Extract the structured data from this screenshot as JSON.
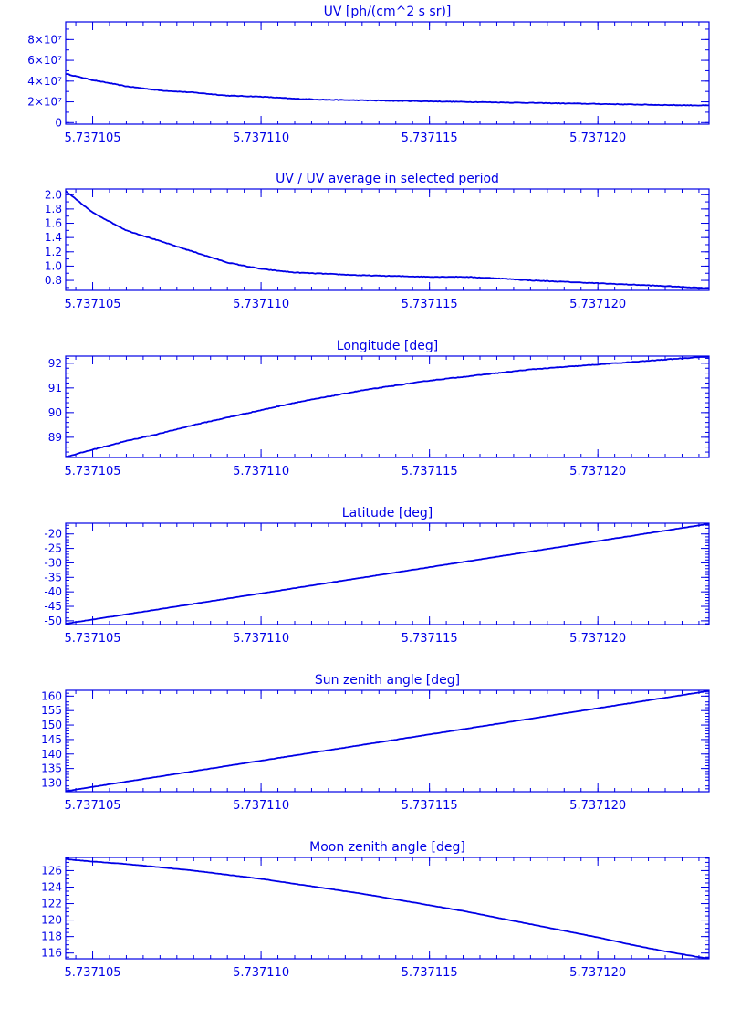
{
  "colors": {
    "line": "#0000e6",
    "background": "#ffffff"
  },
  "chart_data": [
    {
      "type": "line",
      "title": "UV [ph/(cm^2 s sr)]",
      "xlim": [
        5.7371042,
        5.7371233
      ],
      "ylim": [
        -1500000,
        97000000
      ],
      "yticks": [
        0,
        20000000,
        40000000,
        60000000,
        80000000
      ],
      "ytick_labels": [
        "0",
        "2×10⁷",
        "4×10⁷",
        "6×10⁷",
        "8×10⁷"
      ],
      "yminor_step": 10000000,
      "xticks": [
        5.737105,
        5.73711,
        5.737115,
        5.73712
      ],
      "xtick_labels": [
        "5.737105",
        "5.737110",
        "5.737115",
        "5.737120"
      ],
      "series": [
        {
          "x": [
            5.7371042,
            5.737105,
            5.737106,
            5.737107,
            5.737108,
            5.737109,
            5.73711,
            5.737111,
            5.737112,
            5.737113,
            5.737114,
            5.737115,
            5.737116,
            5.737117,
            5.737118,
            5.737119,
            5.73712,
            5.737121,
            5.737122,
            5.7371233
          ],
          "y": [
            47000000,
            41000000,
            35000000,
            31000000,
            29000000,
            26000000,
            25000000,
            23000000,
            22000000,
            21500000,
            21000000,
            20500000,
            20000000,
            19500000,
            19000000,
            18500000,
            18000000,
            17500000,
            17000000,
            16500000
          ]
        }
      ]
    },
    {
      "type": "line",
      "title": "UV / UV average in selected period",
      "xlim": [
        5.7371042,
        5.7371233
      ],
      "ylim": [
        0.66,
        2.08
      ],
      "yticks": [
        0.8,
        1.0,
        1.2,
        1.4,
        1.6,
        1.8,
        2.0
      ],
      "ytick_labels": [
        "0.8",
        "1.0",
        "1.2",
        "1.4",
        "1.6",
        "1.8",
        "2.0"
      ],
      "yminor_step": 0.1,
      "xticks": [
        5.737105,
        5.73711,
        5.737115,
        5.73712
      ],
      "xtick_labels": [
        "5.737105",
        "5.737110",
        "5.737115",
        "5.737120"
      ],
      "series": [
        {
          "x": [
            5.7371042,
            5.737105,
            5.737106,
            5.737107,
            5.737108,
            5.737109,
            5.73711,
            5.737111,
            5.737112,
            5.737113,
            5.737114,
            5.737115,
            5.737116,
            5.737117,
            5.737118,
            5.737119,
            5.73712,
            5.737121,
            5.737122,
            5.7371233
          ],
          "y": [
            2.05,
            1.75,
            1.5,
            1.35,
            1.2,
            1.05,
            0.96,
            0.91,
            0.89,
            0.87,
            0.86,
            0.85,
            0.85,
            0.83,
            0.8,
            0.78,
            0.76,
            0.74,
            0.72,
            0.69
          ]
        }
      ]
    },
    {
      "type": "line",
      "title": "Longitude [deg]",
      "xlim": [
        5.7371042,
        5.7371233
      ],
      "ylim": [
        88.18,
        92.29
      ],
      "yticks": [
        89,
        90,
        91,
        92
      ],
      "ytick_labels": [
        "89",
        "90",
        "91",
        "92"
      ],
      "yminor_step": 0.2,
      "xticks": [
        5.737105,
        5.73711,
        5.737115,
        5.73712
      ],
      "xtick_labels": [
        "5.737105",
        "5.737110",
        "5.737115",
        "5.737120"
      ],
      "series": [
        {
          "x": [
            5.7371042,
            5.737105,
            5.737106,
            5.737107,
            5.737108,
            5.737109,
            5.73711,
            5.737111,
            5.737112,
            5.737113,
            5.737114,
            5.737115,
            5.737116,
            5.737117,
            5.737118,
            5.737119,
            5.73712,
            5.737121,
            5.737122,
            5.7371233
          ],
          "y": [
            88.2,
            88.5,
            88.85,
            89.15,
            89.5,
            89.8,
            90.1,
            90.4,
            90.65,
            90.9,
            91.1,
            91.3,
            91.45,
            91.6,
            91.75,
            91.85,
            91.95,
            92.05,
            92.15,
            92.28
          ]
        }
      ]
    },
    {
      "type": "line",
      "title": "Latitude [deg]",
      "xlim": [
        5.7371042,
        5.7371233
      ],
      "ylim": [
        -51.3,
        -16.3
      ],
      "yticks": [
        -50,
        -45,
        -40,
        -35,
        -30,
        -25,
        -20
      ],
      "ytick_labels": [
        "-50",
        "-45",
        "-40",
        "-35",
        "-30",
        "-25",
        "-20"
      ],
      "yminor_step": 1,
      "xticks": [
        5.737105,
        5.73711,
        5.737115,
        5.73712
      ],
      "xtick_labels": [
        "5.737105",
        "5.737110",
        "5.737115",
        "5.737120"
      ],
      "series": [
        {
          "x": [
            5.7371042,
            5.7371233
          ],
          "y": [
            -51.0,
            -16.5
          ]
        }
      ]
    },
    {
      "type": "line",
      "title": "Sun zenith angle [deg]",
      "xlim": [
        5.7371042,
        5.7371233
      ],
      "ylim": [
        127.0,
        162.0
      ],
      "yticks": [
        130,
        135,
        140,
        145,
        150,
        155,
        160
      ],
      "ytick_labels": [
        "130",
        "135",
        "140",
        "145",
        "150",
        "155",
        "160"
      ],
      "yminor_step": 1,
      "xticks": [
        5.737105,
        5.73711,
        5.737115,
        5.73712
      ],
      "xtick_labels": [
        "5.737105",
        "5.737110",
        "5.737115",
        "5.737120"
      ],
      "series": [
        {
          "x": [
            5.7371042,
            5.7371233
          ],
          "y": [
            127.2,
            161.8
          ]
        }
      ]
    },
    {
      "type": "line",
      "title": "Moon zenith angle [deg]",
      "xlim": [
        5.7371042,
        5.7371233
      ],
      "ylim": [
        115.3,
        127.6
      ],
      "yticks": [
        116,
        118,
        120,
        122,
        124,
        126
      ],
      "ytick_labels": [
        "116",
        "118",
        "120",
        "122",
        "124",
        "126"
      ],
      "yminor_step": 0.5,
      "xticks": [
        5.737105,
        5.73711,
        5.737115,
        5.73712
      ],
      "xtick_labels": [
        "5.737105",
        "5.737110",
        "5.737115",
        "5.737120"
      ],
      "series": [
        {
          "x": [
            5.7371042,
            5.737105,
            5.737106,
            5.737107,
            5.737108,
            5.737109,
            5.73711,
            5.737111,
            5.737112,
            5.737113,
            5.737114,
            5.737115,
            5.737116,
            5.737117,
            5.737118,
            5.737119,
            5.73712,
            5.737121,
            5.737122,
            5.7371233
          ],
          "y": [
            127.4,
            127.1,
            126.8,
            126.4,
            126.0,
            125.5,
            125.0,
            124.4,
            123.8,
            123.2,
            122.5,
            121.8,
            121.1,
            120.3,
            119.5,
            118.7,
            117.9,
            117.0,
            116.2,
            115.3
          ]
        }
      ]
    }
  ]
}
